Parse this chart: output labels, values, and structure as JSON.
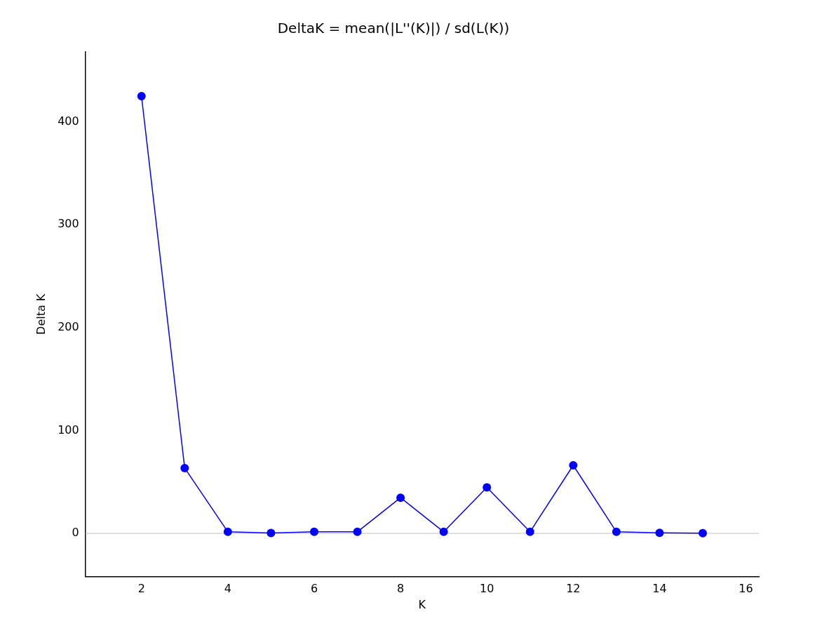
{
  "chart_data": {
    "type": "line",
    "title": "DeltaK = mean(|L''(K)|) / sd(L(K))",
    "xlabel": "K",
    "ylabel": "Delta K",
    "x": [
      2,
      3,
      4,
      5,
      6,
      7,
      8,
      9,
      10,
      11,
      12,
      13,
      14,
      15
    ],
    "series": [
      {
        "color": "#0000ff",
        "values": [
          425,
          63.5,
          1.5,
          0.3,
          1.5,
          1.5,
          34.7,
          1.5,
          44.7,
          1.5,
          66.2,
          1.5,
          0.5,
          0.2
        ]
      }
    ],
    "xlim": [
      0.7,
      16.3
    ],
    "xticks": [
      2,
      4,
      6,
      8,
      10,
      12,
      14,
      16
    ],
    "ylim": [
      -42,
      468
    ],
    "yticks": [
      0,
      100,
      200,
      300,
      400
    ],
    "ref_lines": [
      {
        "axis": "y",
        "value": 0,
        "color": "#c0c0c0"
      }
    ],
    "grid": false,
    "legend": false,
    "marker": "circle",
    "line_style": "solid"
  }
}
